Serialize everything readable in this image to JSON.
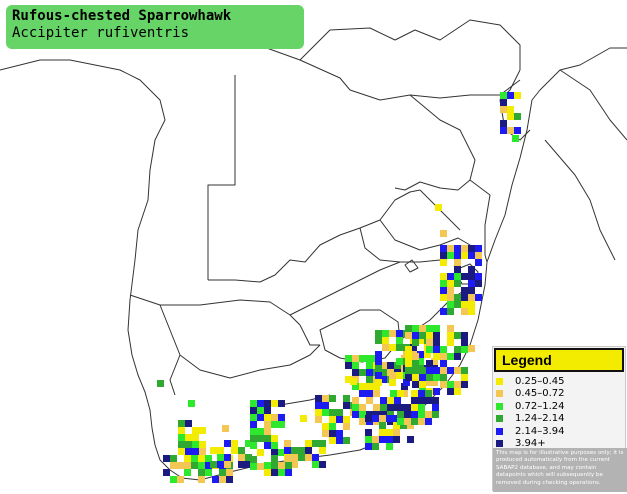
{
  "title": {
    "common_name": "Rufous-chested Sparrowhawk",
    "scientific_name": "Accipiter rufiventris"
  },
  "legend": {
    "heading": "Legend",
    "items": [
      {
        "label": "0.25–0.45",
        "color": "#f4ec00"
      },
      {
        "label": "0.45–0.72",
        "color": "#f4c654"
      },
      {
        "label": "0.72–1.24",
        "color": "#2ee82e"
      },
      {
        "label": "1.24–2.14",
        "color": "#2fa92f"
      },
      {
        "label": "2.14–3.94",
        "color": "#1c1cf2"
      },
      {
        "label": "3.94+",
        "color": "#1a1a80"
      }
    ],
    "note": "This map is for illustrative purposes only; it is produced automatically from the current SABAP2 database, and may contain datapoints which will subsequently be removed during checking operations."
  },
  "map": {
    "border_color": "#333333"
  }
}
